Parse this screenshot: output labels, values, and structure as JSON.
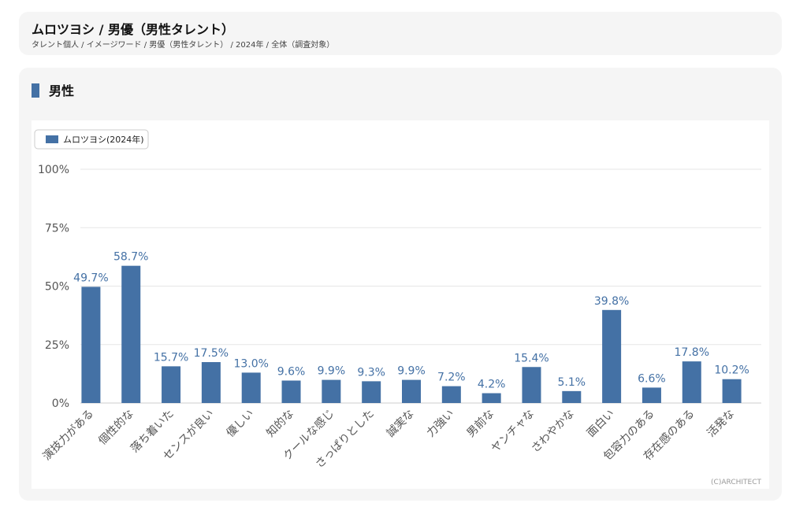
{
  "header": {
    "title": "ムロツヨシ / 男優（男性タレント）",
    "breadcrumb": {
      "item1": "タレント個人",
      "item2": "イメージワード",
      "item3": "男優（男性タレント）",
      "item4": "2024年",
      "item5": "全体（調査対象）",
      "sep": " / "
    }
  },
  "section": {
    "title": "男性"
  },
  "copyright": "(C)ARCHITECT",
  "colors": {
    "bar": "#4471a5",
    "grid": "#e6e6e6",
    "label": "#4471a5"
  },
  "chart_data": {
    "type": "bar",
    "categories": [
      "演技力がある",
      "個性的な",
      "落ち着いた",
      "センスが良い",
      "優しい",
      "知的な",
      "クールな感じ",
      "さっぱりとした",
      "誠実な",
      "力強い",
      "男前な",
      "ヤンチャな",
      "さわやかな",
      "面白い",
      "包容力のある",
      "存在感のある",
      "活発な"
    ],
    "series": [
      {
        "name": "ムロツヨシ(2024年)",
        "values": [
          49.7,
          58.7,
          15.7,
          17.5,
          13.0,
          9.6,
          9.9,
          9.3,
          9.9,
          7.2,
          4.2,
          15.4,
          5.1,
          39.8,
          6.6,
          17.8,
          10.2
        ]
      }
    ],
    "data_labels": [
      "49.7%",
      "58.7%",
      "15.7%",
      "17.5%",
      "13.0%",
      "9.6%",
      "9.9%",
      "9.3%",
      "9.9%",
      "7.2%",
      "4.2%",
      "15.4%",
      "5.1%",
      "39.8%",
      "6.6%",
      "17.8%",
      "10.2%"
    ],
    "y_ticks": [
      0,
      25,
      50,
      75,
      100
    ],
    "y_tick_labels": [
      "0%",
      "25%",
      "50%",
      "75%",
      "100%"
    ],
    "ylim": [
      0,
      100
    ],
    "grid": true,
    "legend": "top-left"
  }
}
